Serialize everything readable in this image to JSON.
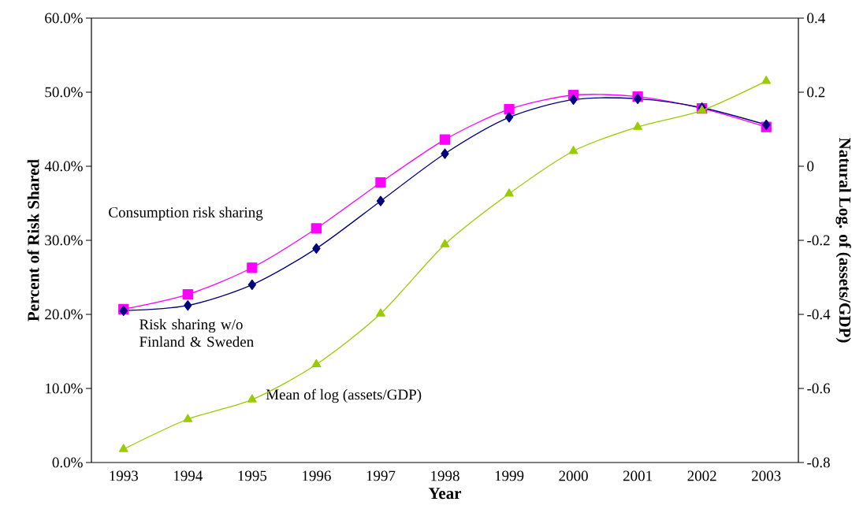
{
  "chart_data": {
    "type": "line",
    "xlabel": "Year",
    "ylabel": "Percent of Risk Shared",
    "y2label": "Natural Log. of (assets/GDP)",
    "categories": [
      "1993",
      "1994",
      "1995",
      "1996",
      "1997",
      "1998",
      "1999",
      "2000",
      "2001",
      "2002",
      "2003"
    ],
    "series": [
      {
        "name": "Consumption risk sharing",
        "color": "#ff00ff",
        "marker": "square",
        "values": [
          20.7,
          22.7,
          26.3,
          31.6,
          37.8,
          43.6,
          47.7,
          49.6,
          49.4,
          47.8,
          45.3
        ]
      },
      {
        "name": "Risk sharing w/o Finland & Sweden",
        "color": "#000080",
        "marker": "diamond",
        "values": [
          20.5,
          21.2,
          24.0,
          28.9,
          35.3,
          41.7,
          46.6,
          49.0,
          49.1,
          47.9,
          45.6
        ]
      },
      {
        "name": "Mean of log (assets/GDP)",
        "color": "#99cc00",
        "marker": "triangle",
        "axis": "y2",
        "values": [
          -0.764,
          -0.683,
          -0.63,
          -0.535,
          -0.398,
          -0.211,
          -0.074,
          0.041,
          0.106,
          0.151,
          0.23
        ]
      }
    ],
    "ylim": [
      0,
      60
    ],
    "yticks": [
      {
        "value": 0,
        "label": "0.0%"
      },
      {
        "value": 10,
        "label": "10.0%"
      },
      {
        "value": 20,
        "label": "20.0%"
      },
      {
        "value": 30,
        "label": "30.0%"
      },
      {
        "value": 40,
        "label": "40.0%"
      },
      {
        "value": 50,
        "label": "50.0%"
      },
      {
        "value": 60,
        "label": "60.0%"
      }
    ],
    "y2lim": [
      -0.8,
      0.4
    ],
    "y2ticks": [
      -0.8,
      -0.6,
      -0.4,
      -0.2,
      0,
      0.2,
      0.4
    ],
    "grid": false,
    "legend": false,
    "line_style": "solid"
  }
}
